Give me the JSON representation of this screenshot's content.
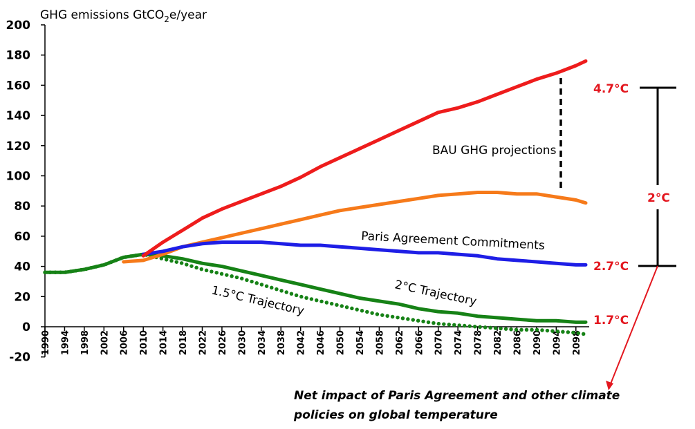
{
  "chart_data": {
    "type": "line",
    "title": "",
    "ylabel": "GHG emissions GtCO2e/year",
    "ylabel_main": "GHG emissions GtCO",
    "ylabel_sub": "2",
    "ylabel_tail": "e/year",
    "xlabel": "",
    "ylim": [
      -20,
      200
    ],
    "yticks": [
      -20,
      0,
      20,
      40,
      60,
      80,
      100,
      120,
      140,
      160,
      180,
      200
    ],
    "xlim": [
      1990,
      2100
    ],
    "xticks": [
      "1990",
      "1994",
      "1998",
      "2002",
      "2006",
      "2010",
      "2014",
      "2018",
      "2022",
      "2026",
      "2030",
      "2034",
      "2038",
      "2042",
      "2046",
      "2050",
      "2054",
      "2058",
      "2062",
      "2066",
      "2070",
      "2074",
      "2078",
      "2082",
      "2086",
      "2090",
      "2094",
      "2098"
    ],
    "grid": false,
    "x": [
      1990,
      1994,
      1998,
      2002,
      2006,
      2010,
      2014,
      2018,
      2022,
      2026,
      2030,
      2034,
      2038,
      2042,
      2046,
      2050,
      2054,
      2058,
      2062,
      2066,
      2070,
      2074,
      2078,
      2082,
      2086,
      2090,
      2094,
      2098,
      2100
    ],
    "series": [
      {
        "name": "BAU GHG projections (high)",
        "color": "#ee1c1c",
        "style": "solid",
        "values": [
          null,
          null,
          null,
          null,
          null,
          47,
          56,
          64,
          72,
          78,
          83,
          88,
          93,
          99,
          106,
          112,
          118,
          124,
          130,
          136,
          142,
          145,
          149,
          154,
          159,
          164,
          168,
          173,
          176
        ]
      },
      {
        "name": "BAU GHG projections (low)",
        "color": "#f67a1a",
        "style": "solid",
        "values": [
          null,
          null,
          null,
          null,
          43,
          44,
          48,
          53,
          56,
          59,
          62,
          65,
          68,
          71,
          74,
          77,
          79,
          81,
          83,
          85,
          87,
          88,
          89,
          89,
          88,
          88,
          86,
          84,
          82
        ]
      },
      {
        "name": "Paris Agreement Commitments",
        "color": "#1e1ee6",
        "style": "solid",
        "values": [
          null,
          null,
          null,
          null,
          null,
          48,
          50,
          53,
          55,
          56,
          56,
          56,
          55,
          54,
          54,
          53,
          52,
          51,
          50,
          49,
          49,
          48,
          47,
          45,
          44,
          43,
          42,
          41,
          41
        ]
      },
      {
        "name": "2°C Trajectory",
        "color": "#168216",
        "style": "solid",
        "values": [
          36,
          36,
          38,
          41,
          46,
          48,
          47,
          45,
          42,
          40,
          37,
          34,
          31,
          28,
          25,
          22,
          19,
          17,
          15,
          12,
          10,
          9,
          7,
          6,
          5,
          4,
          4,
          3,
          3
        ]
      },
      {
        "name": "1.5°C Trajectory",
        "color": "#168216",
        "style": "dotted",
        "values": [
          36,
          36,
          38,
          41,
          46,
          48,
          45,
          42,
          38,
          35,
          32,
          28,
          24,
          20,
          17,
          14,
          11,
          8,
          6,
          4,
          2,
          1,
          0,
          -1,
          -2,
          -2,
          -3,
          -4,
          -5
        ]
      }
    ],
    "annotations": {
      "bau": "BAU GHG projections",
      "paris": "Paris Agreement Commitments",
      "two_deg": "2°C Trajectory",
      "one_five_deg": "1.5°C Trajectory",
      "temp_high": "4.7°C",
      "temp_paris": "2.7°C",
      "temp_low": "1.7°C",
      "temp_diff": "2°C",
      "note_line1": "Net impact of Paris Agreement and other climate",
      "note_line2": "policies on global temperature"
    },
    "legend": "none"
  },
  "colors": {
    "annotation_red": "#e3171f",
    "axis": "#000000"
  }
}
